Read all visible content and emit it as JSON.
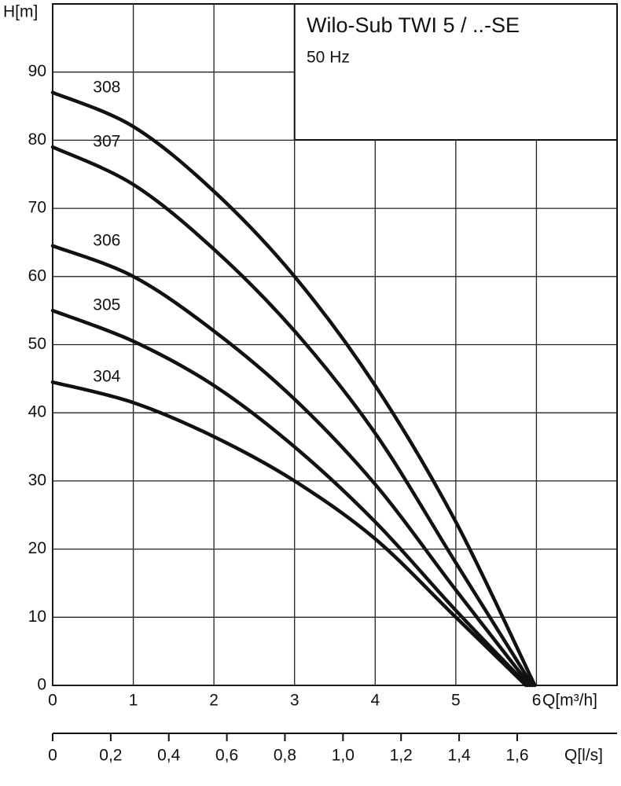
{
  "chart_data": {
    "type": "line",
    "title": "Wilo-Sub TWI 5 / ..-SE",
    "subtitle": "50 Hz",
    "y_label": "H[m]",
    "x_label": "Q[m³/h]",
    "x2_label": "Q[l/s]",
    "xlim": [
      0,
      7
    ],
    "xticks": [
      0,
      1,
      2,
      3,
      4,
      5,
      6
    ],
    "ylim": [
      0,
      100
    ],
    "yticks": [
      0,
      10,
      20,
      30,
      40,
      50,
      60,
      70,
      80,
      90
    ],
    "x2lim": [
      0,
      1.944
    ],
    "x2ticks": [
      0,
      {
        "value": 0.2,
        "label": "0,2"
      },
      {
        "value": 0.4,
        "label": "0,4"
      },
      {
        "value": 0.6,
        "label": "0,6"
      },
      {
        "value": 0.8,
        "label": "0,8"
      },
      {
        "value": 1.0,
        "label": "1,0"
      },
      {
        "value": 1.2,
        "label": "1,2"
      },
      {
        "value": 1.4,
        "label": "1,4"
      },
      {
        "value": 1.6,
        "label": "1,6"
      }
    ],
    "grid": true,
    "series": [
      {
        "name": "308",
        "color": "#111111",
        "x": [
          0,
          1,
          2,
          3,
          4,
          5,
          5.98
        ],
        "values": [
          87,
          82,
          72.5,
          60,
          44,
          24,
          0
        ]
      },
      {
        "name": "307",
        "color": "#111111",
        "x": [
          0,
          1,
          2,
          3,
          4,
          5,
          5.95
        ],
        "values": [
          79,
          73.5,
          64,
          52,
          37,
          18,
          0
        ]
      },
      {
        "name": "306",
        "color": "#111111",
        "x": [
          0,
          1,
          2,
          3,
          4,
          5,
          5.92
        ],
        "values": [
          64.5,
          60,
          52,
          42,
          29.5,
          14,
          0
        ]
      },
      {
        "name": "305",
        "color": "#111111",
        "x": [
          0,
          1,
          2,
          3,
          4,
          5,
          5.89
        ],
        "values": [
          55,
          50.5,
          44,
          35,
          24,
          11,
          0
        ]
      },
      {
        "name": "304",
        "color": "#111111",
        "x": [
          0,
          1,
          2,
          3,
          4,
          5,
          5.87
        ],
        "values": [
          44.5,
          41.5,
          36.5,
          30,
          21.5,
          10,
          0
        ]
      }
    ]
  }
}
